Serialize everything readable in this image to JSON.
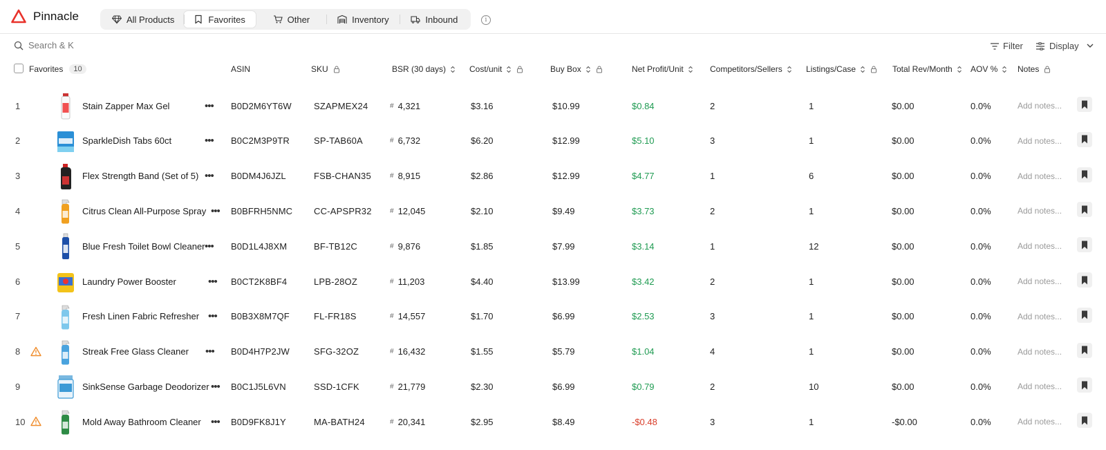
{
  "app": {
    "name": "Pinnacle"
  },
  "tabs": [
    {
      "label": "All Products",
      "icon": "diamond-icon"
    },
    {
      "label": "Favorites",
      "icon": "bookmark-icon",
      "active": true
    },
    {
      "label": "Other",
      "icon": "cart-icon"
    },
    {
      "label": "Inventory",
      "icon": "warehouse-icon"
    },
    {
      "label": "Inbound",
      "icon": "truck-icon"
    }
  ],
  "toolbar": {
    "search_placeholder": "Search & K",
    "filter_label": "Filter",
    "display_label": "Display"
  },
  "columns": {
    "favorites": "Favorites",
    "favorites_count": "10",
    "asin": "ASIN",
    "sku": "SKU",
    "bsr": "BSR (30 days)",
    "cost": "Cost/unit",
    "buybox": "Buy Box",
    "profit": "Net Profit/Unit",
    "competitors": "Competitors/Sellers",
    "listings": "Listings/Case",
    "revenue": "Total Rev/Month",
    "aov": "AOV %",
    "notes": "Notes"
  },
  "rows": [
    {
      "index": "1",
      "name": "Stain Zapper Max Gel",
      "asin": "B0D2M6YT6W",
      "sku": "SZAPMEX24",
      "bsr": "4,321",
      "cost": "$3.16",
      "buybox": "$10.99",
      "profit": "$0.84",
      "competitors": "2",
      "listings": "1",
      "revenue": "$0.00",
      "aov": "0.0%",
      "notes": "Add notes...",
      "warning": false,
      "thumb": "gel-bottle",
      "color": "#e33"
    },
    {
      "index": "2",
      "name": "SparkleDish Tabs 60ct",
      "asin": "B0C2M3P9TR",
      "sku": "SP-TAB60A",
      "bsr": "6,732",
      "cost": "$6.20",
      "buybox": "$12.99",
      "profit": "$5.10",
      "competitors": "3",
      "listings": "1",
      "revenue": "$0.00",
      "aov": "0.0%",
      "notes": "Add notes...",
      "warning": false,
      "thumb": "box",
      "color": "#2a8fd6"
    },
    {
      "index": "3",
      "name": "Flex Strength Band (Set of 5)",
      "asin": "B0DM4J6JZL",
      "sku": "FSB-CHAN35",
      "bsr": "8,915",
      "cost": "$2.86",
      "buybox": "$12.99",
      "profit": "$4.77",
      "competitors": "1",
      "listings": "6",
      "revenue": "$0.00",
      "aov": "0.0%",
      "notes": "Add notes...",
      "warning": false,
      "thumb": "jug",
      "color": "#222"
    },
    {
      "index": "4",
      "name": "Citrus Clean All-Purpose Spray",
      "asin": "B0BFRH5NMC",
      "sku": "CC-APSPR32",
      "bsr": "12,045",
      "cost": "$2.10",
      "buybox": "$9.49",
      "profit": "$3.73",
      "competitors": "2",
      "listings": "1",
      "revenue": "$0.00",
      "aov": "0.0%",
      "notes": "Add notes...",
      "warning": false,
      "thumb": "spray",
      "color": "#f0a020"
    },
    {
      "index": "5",
      "name": "Blue Fresh Toilet Bowl Cleaner",
      "asin": "B0D1L4J8XM",
      "sku": "BF-TB12C",
      "bsr": "9,876",
      "cost": "$1.85",
      "buybox": "$7.99",
      "profit": "$3.14",
      "competitors": "1",
      "listings": "12",
      "revenue": "$0.00",
      "aov": "0.0%",
      "notes": "Add notes...",
      "warning": false,
      "thumb": "bottle",
      "color": "#1d4fa8"
    },
    {
      "index": "6",
      "name": "Laundry Power Booster",
      "asin": "B0CT2K8BF4",
      "sku": "LPB-28OZ",
      "bsr": "11,203",
      "cost": "$4.40",
      "buybox": "$13.99",
      "profit": "$3.42",
      "competitors": "2",
      "listings": "1",
      "revenue": "$0.00",
      "aov": "0.0%",
      "notes": "Add notes...",
      "warning": false,
      "thumb": "tub",
      "color": "#f3c31a"
    },
    {
      "index": "7",
      "name": "Fresh Linen Fabric Refresher",
      "asin": "B0B3X8M7QF",
      "sku": "FL-FR18S",
      "bsr": "14,557",
      "cost": "$1.70",
      "buybox": "$6.99",
      "profit": "$2.53",
      "competitors": "3",
      "listings": "1",
      "revenue": "$0.00",
      "aov": "0.0%",
      "notes": "Add notes...",
      "warning": false,
      "thumb": "spray",
      "color": "#7ec8ec"
    },
    {
      "index": "8",
      "name": "Streak Free Glass Cleaner",
      "asin": "B0D4H7P2JW",
      "sku": "SFG-32OZ",
      "bsr": "16,432",
      "cost": "$1.55",
      "buybox": "$5.79",
      "profit": "$1.04",
      "competitors": "4",
      "listings": "1",
      "revenue": "$0.00",
      "aov": "0.0%",
      "notes": "Add notes...",
      "warning": true,
      "thumb": "spray",
      "color": "#4aa3de"
    },
    {
      "index": "9",
      "name": "SinkSense Garbage Deodorizer",
      "asin": "B0C1J5L6VN",
      "sku": "SSD-1CFK",
      "bsr": "21,779",
      "cost": "$2.30",
      "buybox": "$6.99",
      "profit": "$0.79",
      "competitors": "2",
      "listings": "10",
      "revenue": "$0.00",
      "aov": "0.0%",
      "notes": "Add notes...",
      "warning": false,
      "thumb": "jar",
      "color": "#3c9ad6"
    },
    {
      "index": "10",
      "name": "Mold Away Bathroom Cleaner",
      "asin": "B0D9FK8J1Y",
      "sku": "MA-BATH24",
      "bsr": "20,341",
      "cost": "$2.95",
      "buybox": "$8.49",
      "profit": "-$0.48",
      "competitors": "3",
      "listings": "1",
      "revenue": "-$0.00",
      "aov": "0.0%",
      "notes": "Add notes...",
      "warning": true,
      "thumb": "spray",
      "color": "#2e8b45"
    }
  ]
}
